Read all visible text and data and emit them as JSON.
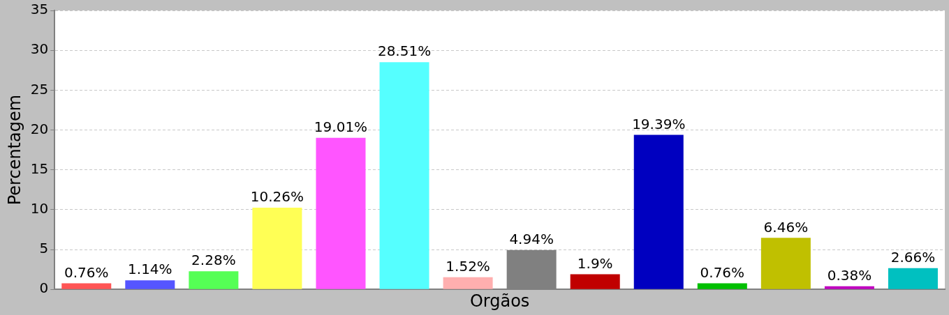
{
  "chart_data": {
    "type": "bar",
    "xlabel": "Orgãos",
    "ylabel": "Percentagem",
    "categories": [
      null,
      null,
      null,
      null,
      null,
      null,
      null,
      null,
      null,
      null,
      null,
      null,
      null,
      null
    ],
    "values": [
      0.76,
      1.14,
      2.28,
      10.26,
      19.01,
      28.51,
      1.52,
      4.94,
      1.9,
      19.39,
      0.76,
      6.46,
      0.38,
      2.66
    ],
    "value_labels": [
      "0.76%",
      "1.14%",
      "2.28%",
      "10.26%",
      "19.01%",
      "28.51%",
      "1.52%",
      "4.94%",
      "1.9%",
      "19.39%",
      "0.76%",
      "6.46%",
      "0.38%",
      "2.66%"
    ],
    "colors": [
      "#ff5555",
      "#5555ff",
      "#55ff55",
      "#ffff55",
      "#ff55ff",
      "#55ffff",
      "#ffafaf",
      "#808080",
      "#c00000",
      "#0000c0",
      "#00c000",
      "#c0c000",
      "#c000c0",
      "#00c0c0"
    ],
    "ylim": [
      0,
      35
    ],
    "yticks": [
      0,
      5,
      10,
      15,
      20,
      25,
      30,
      35
    ],
    "grid": "y",
    "legend": false,
    "tick_labels": "y"
  }
}
